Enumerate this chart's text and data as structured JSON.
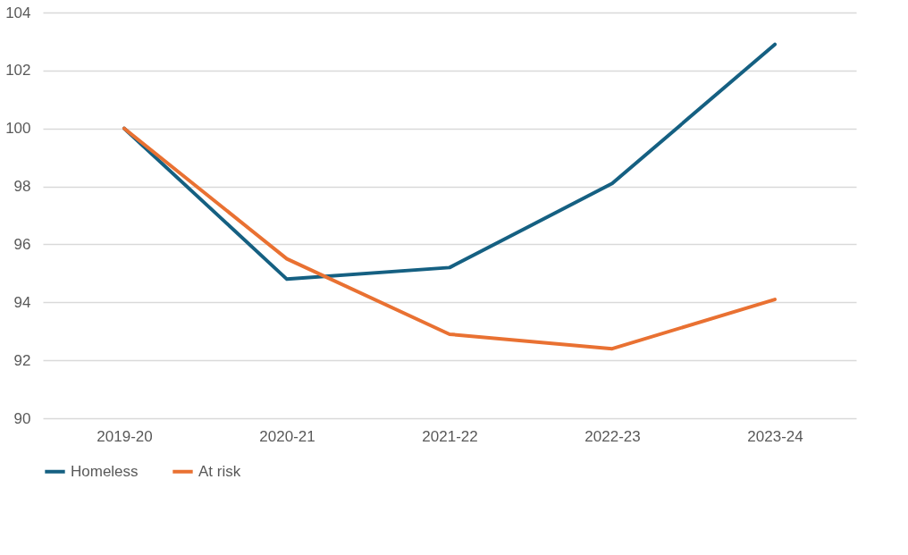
{
  "chart_data": {
    "type": "line",
    "categories": [
      "2019-20",
      "2020-21",
      "2021-22",
      "2022-23",
      "2023-24"
    ],
    "series": [
      {
        "name": "Homeless",
        "color": "#156082",
        "values": [
          100,
          94.8,
          95.2,
          98.1,
          102.9
        ]
      },
      {
        "name": "At risk",
        "color": "#e97132",
        "values": [
          100,
          95.5,
          92.9,
          92.4,
          94.1
        ]
      }
    ],
    "ylim": [
      90,
      104
    ],
    "yticks": [
      90,
      92,
      94,
      96,
      98,
      100,
      102,
      104
    ],
    "grid": "y",
    "legend": "bottom",
    "marker": "none",
    "line_style": "solid"
  }
}
